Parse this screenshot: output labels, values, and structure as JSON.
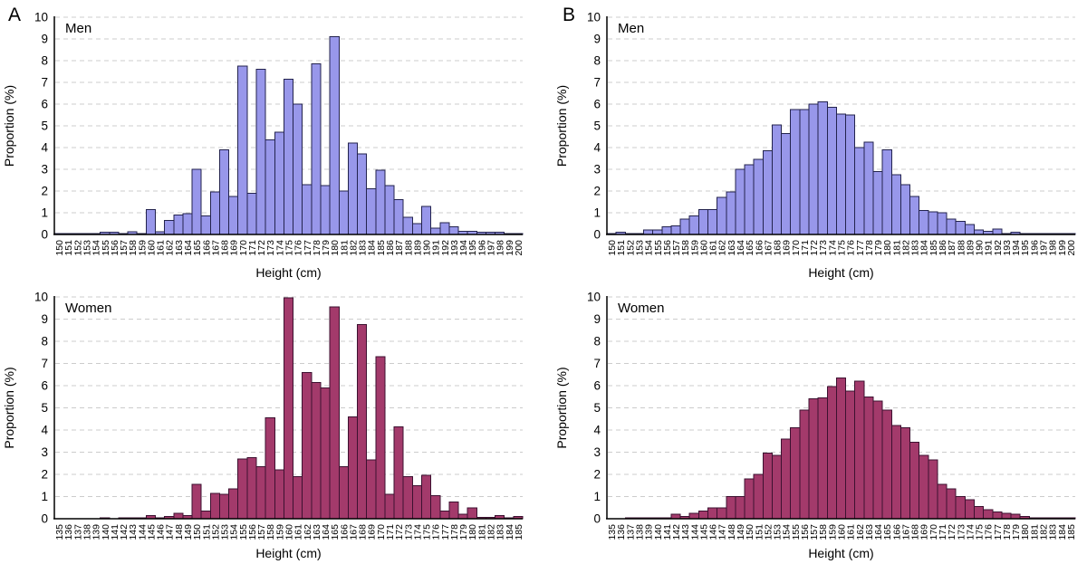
{
  "figure": {
    "background": "#ffffff",
    "panels": [
      {
        "label": "A"
      },
      {
        "label": "B"
      }
    ],
    "colors": {
      "men_bar_fill": "#9897ea",
      "men_bar_stroke": "#23234e",
      "women_bar_fill": "#a33a6b",
      "women_bar_stroke": "#3c1130",
      "gridline": "#cccccc",
      "axis": "#000000"
    }
  },
  "chart_data": [
    {
      "type": "bar",
      "panel": "A",
      "title": "Men",
      "xlabel": "Height (cm)",
      "ylabel": "Proportion (%)",
      "ylim": [
        0,
        10
      ],
      "y_ticks": [
        0,
        1,
        2,
        3,
        4,
        5,
        6,
        7,
        8,
        9,
        10
      ],
      "grid": "horizontal-dashed",
      "legend": "none",
      "bar_fill": "#9897ea",
      "bar_stroke": "#23234e",
      "categories": [
        150,
        151,
        152,
        153,
        154,
        155,
        156,
        157,
        158,
        159,
        160,
        161,
        162,
        163,
        164,
        165,
        166,
        167,
        168,
        169,
        170,
        171,
        172,
        173,
        174,
        175,
        176,
        177,
        178,
        179,
        180,
        181,
        182,
        183,
        184,
        185,
        186,
        187,
        188,
        189,
        190,
        191,
        192,
        193,
        194,
        195,
        196,
        197,
        198,
        199,
        200
      ],
      "values": [
        0.05,
        0.02,
        0.03,
        0.05,
        0.05,
        0.1,
        0.1,
        0.03,
        0.12,
        0.05,
        1.15,
        0.13,
        0.65,
        0.9,
        0.95,
        3.0,
        0.85,
        1.95,
        3.9,
        1.75,
        7.75,
        1.9,
        7.6,
        4.35,
        4.7,
        7.15,
        6.0,
        2.3,
        7.85,
        2.25,
        9.1,
        2.0,
        4.2,
        3.7,
        2.1,
        2.95,
        2.25,
        1.6,
        0.8,
        0.5,
        1.3,
        0.3,
        0.55,
        0.35,
        0.15,
        0.15,
        0.1,
        0.1,
        0.1,
        0.02,
        0.03
      ]
    },
    {
      "type": "bar",
      "panel": "B",
      "title": "Men",
      "xlabel": "Height (cm)",
      "ylabel": "Proportion (%)",
      "ylim": [
        0,
        10
      ],
      "y_ticks": [
        0,
        1,
        2,
        3,
        4,
        5,
        6,
        7,
        8,
        9,
        10
      ],
      "grid": "horizontal-dashed",
      "legend": "none",
      "bar_fill": "#9897ea",
      "bar_stroke": "#23234e",
      "categories": [
        150,
        151,
        152,
        153,
        154,
        155,
        156,
        157,
        158,
        159,
        160,
        161,
        162,
        163,
        164,
        165,
        166,
        167,
        168,
        169,
        170,
        171,
        172,
        173,
        174,
        175,
        176,
        177,
        178,
        179,
        180,
        181,
        182,
        183,
        184,
        185,
        186,
        187,
        188,
        189,
        190,
        191,
        192,
        193,
        194,
        195,
        196,
        197,
        198,
        199,
        200
      ],
      "values": [
        0.05,
        0.1,
        0.05,
        0.05,
        0.2,
        0.2,
        0.35,
        0.4,
        0.7,
        0.85,
        1.15,
        1.15,
        1.7,
        1.95,
        3.0,
        3.2,
        3.45,
        3.85,
        5.05,
        4.65,
        5.75,
        5.75,
        6.0,
        6.1,
        5.85,
        5.55,
        5.5,
        4.0,
        4.25,
        2.9,
        3.9,
        2.75,
        2.3,
        1.75,
        1.1,
        1.05,
        1.0,
        0.7,
        0.6,
        0.45,
        0.2,
        0.15,
        0.25,
        0.02,
        0.1,
        0.05,
        0.02,
        0.02,
        0.02,
        0.02,
        0.02
      ]
    },
    {
      "type": "bar",
      "panel": "A",
      "title": "Women",
      "xlabel": "Height (cm)",
      "ylabel": "Proportion (%)",
      "ylim": [
        0,
        10
      ],
      "y_ticks": [
        0,
        1,
        2,
        3,
        4,
        5,
        6,
        7,
        8,
        9,
        10
      ],
      "grid": "horizontal-dashed",
      "legend": "none",
      "bar_fill": "#a33a6b",
      "bar_stroke": "#3c1130",
      "categories": [
        135,
        136,
        137,
        138,
        139,
        140,
        141,
        142,
        143,
        144,
        145,
        146,
        147,
        148,
        149,
        150,
        151,
        152,
        153,
        154,
        155,
        156,
        157,
        158,
        159,
        160,
        161,
        162,
        163,
        164,
        165,
        166,
        167,
        168,
        169,
        170,
        171,
        172,
        173,
        174,
        175,
        176,
        177,
        178,
        179,
        180,
        181,
        182,
        183,
        184,
        185
      ],
      "values": [
        0,
        0,
        0,
        0,
        0,
        0.05,
        0,
        0.03,
        0.03,
        0.03,
        0.15,
        0.05,
        0.1,
        0.25,
        0.15,
        1.55,
        0.35,
        1.15,
        1.1,
        1.35,
        2.7,
        2.75,
        2.35,
        4.55,
        2.2,
        9.95,
        1.9,
        6.6,
        6.15,
        5.9,
        9.55,
        2.35,
        4.6,
        8.75,
        2.65,
        7.3,
        1.1,
        4.15,
        1.9,
        1.5,
        1.95,
        1.05,
        0.35,
        0.75,
        0.2,
        0.5,
        0.07,
        0.07,
        0.15,
        0.03,
        0.1
      ]
    },
    {
      "type": "bar",
      "panel": "B",
      "title": "Women",
      "xlabel": "Height (cm)",
      "ylabel": "Proportion (%)",
      "ylim": [
        0,
        10
      ],
      "y_ticks": [
        0,
        1,
        2,
        3,
        4,
        5,
        6,
        7,
        8,
        9,
        10
      ],
      "grid": "horizontal-dashed",
      "legend": "none",
      "bar_fill": "#a33a6b",
      "bar_stroke": "#3c1130",
      "categories": [
        135,
        136,
        137,
        138,
        139,
        140,
        141,
        142,
        143,
        144,
        145,
        146,
        147,
        148,
        149,
        150,
        151,
        152,
        153,
        154,
        155,
        156,
        157,
        158,
        159,
        160,
        161,
        162,
        163,
        164,
        165,
        166,
        167,
        168,
        169,
        170,
        171,
        172,
        173,
        174,
        175,
        176,
        177,
        178,
        179,
        180,
        181,
        182,
        183,
        184,
        185
      ],
      "values": [
        0,
        0,
        0.02,
        0.02,
        0.02,
        0.05,
        0.05,
        0.2,
        0.1,
        0.25,
        0.35,
        0.5,
        0.5,
        1.0,
        1.0,
        1.8,
        2.0,
        2.95,
        2.85,
        3.6,
        4.1,
        4.9,
        5.4,
        5.45,
        5.95,
        6.35,
        5.75,
        6.2,
        5.5,
        5.3,
        4.9,
        4.2,
        4.1,
        3.45,
        2.85,
        2.65,
        1.55,
        1.35,
        1.0,
        0.85,
        0.55,
        0.4,
        0.3,
        0.25,
        0.2,
        0.1,
        0.05,
        0.02,
        0.05,
        0.02,
        0.02
      ]
    }
  ]
}
